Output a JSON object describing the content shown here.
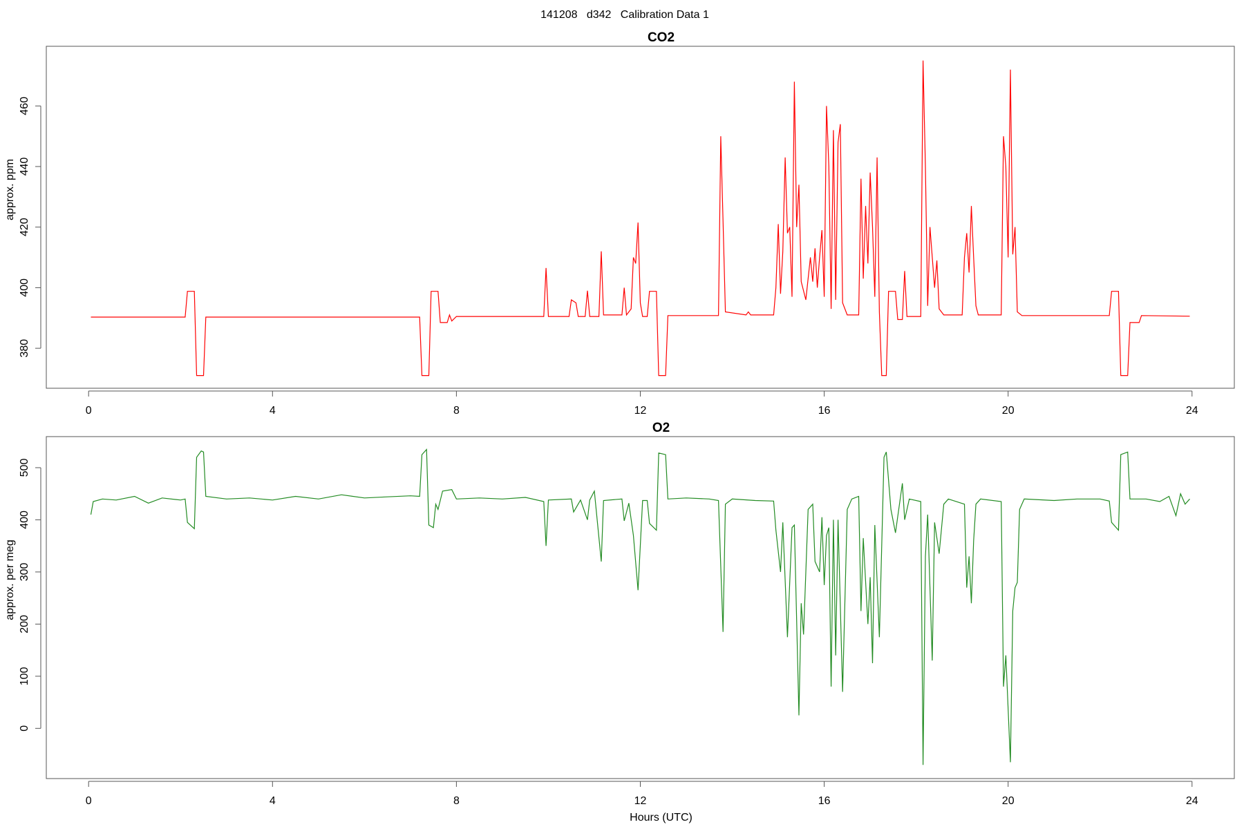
{
  "title": "141208   d342   Calibration Data 1",
  "chart_data": [
    {
      "type": "line",
      "title": "CO2",
      "ylabel": "approx. ppm",
      "color": "#ff0000",
      "xlim": [
        -0.92,
        24.92
      ],
      "xticks": [
        0,
        4,
        8,
        12,
        16,
        20,
        24
      ],
      "ylim": [
        366.8,
        479.7
      ],
      "yticks": [
        380,
        400,
        420,
        440,
        460
      ],
      "x": [
        0.05,
        2.1,
        2.15,
        2.3,
        2.35,
        2.5,
        2.55,
        7.2,
        7.25,
        7.4,
        7.45,
        7.6,
        7.65,
        7.8,
        7.85,
        7.9,
        8.0,
        9.9,
        9.95,
        10.0,
        10.45,
        10.5,
        10.6,
        10.65,
        10.8,
        10.85,
        10.9,
        11.1,
        11.15,
        11.2,
        11.6,
        11.65,
        11.7,
        11.8,
        11.85,
        11.9,
        11.95,
        12.0,
        12.05,
        12.15,
        12.2,
        12.35,
        12.4,
        12.55,
        12.6,
        13.7,
        13.75,
        13.8,
        13.85,
        14.3,
        14.35,
        14.4,
        14.9,
        14.95,
        15.0,
        15.05,
        15.1,
        15.15,
        15.2,
        15.25,
        15.3,
        15.35,
        15.4,
        15.45,
        15.5,
        15.6,
        15.7,
        15.75,
        15.8,
        15.85,
        15.9,
        15.95,
        16.0,
        16.05,
        16.1,
        16.15,
        16.2,
        16.25,
        16.3,
        16.35,
        16.4,
        16.5,
        16.75,
        16.8,
        16.85,
        16.9,
        16.95,
        17.0,
        17.05,
        17.1,
        17.15,
        17.2,
        17.25,
        17.35,
        17.4,
        17.55,
        17.6,
        17.7,
        17.75,
        17.8,
        18.1,
        18.15,
        18.2,
        18.25,
        18.3,
        18.4,
        18.45,
        18.5,
        18.6,
        19.0,
        19.05,
        19.1,
        19.15,
        19.2,
        19.25,
        19.3,
        19.35,
        19.85,
        19.9,
        19.95,
        20.0,
        20.05,
        20.1,
        20.15,
        20.2,
        20.3,
        22.2,
        22.25,
        22.4,
        22.45,
        22.6,
        22.65,
        22.85,
        22.9,
        23.95
      ],
      "values": [
        390.3,
        390.3,
        398.8,
        398.8,
        371,
        371,
        390.3,
        390.3,
        371,
        371,
        398.8,
        398.8,
        388.5,
        388.5,
        391,
        389,
        390.5,
        390.5,
        406.5,
        390.5,
        390.5,
        396,
        395,
        390.5,
        390.5,
        399,
        390.5,
        390.5,
        412,
        391,
        391,
        400,
        391,
        393,
        410,
        408,
        421.5,
        395,
        390.5,
        390.5,
        398.8,
        398.8,
        371,
        371,
        390.8,
        390.8,
        450,
        422,
        392,
        391,
        392,
        391,
        391,
        400,
        421,
        398,
        412,
        443,
        418,
        420,
        397,
        468,
        420,
        434,
        402,
        396,
        410,
        402,
        413,
        400,
        410,
        419,
        397,
        460,
        440,
        393,
        452,
        396,
        448,
        454,
        395,
        391,
        391,
        436,
        403,
        427,
        408,
        438,
        420,
        397,
        443,
        392,
        371,
        371,
        398.8,
        398.8,
        389.5,
        389.5,
        405.5,
        390.5,
        390.5,
        475,
        440,
        394,
        420,
        400,
        409,
        393,
        391,
        391,
        410,
        418,
        405,
        427,
        410,
        394,
        391,
        391,
        450,
        440,
        410,
        472,
        411,
        420,
        392,
        390.8,
        390.8,
        398.8,
        398.8,
        371,
        371,
        388.5,
        388.5,
        390.8,
        390.6
      ]
    },
    {
      "type": "line",
      "title": "O2",
      "ylabel": "approx. per meg",
      "xlabel": "Hours (UTC)",
      "color": "#228b22",
      "xlim": [
        -0.92,
        24.92
      ],
      "xticks": [
        0,
        4,
        8,
        12,
        16,
        20,
        24
      ],
      "ylim": [
        -96.3,
        559.6
      ],
      "yticks": [
        0,
        100,
        200,
        300,
        400,
        500
      ],
      "x": [
        0.05,
        0.1,
        0.3,
        0.6,
        1.0,
        1.3,
        1.6,
        2.0,
        2.1,
        2.15,
        2.3,
        2.35,
        2.45,
        2.5,
        2.55,
        3.0,
        3.5,
        4.0,
        4.5,
        5.0,
        5.5,
        6.0,
        6.5,
        7.0,
        7.2,
        7.25,
        7.35,
        7.4,
        7.5,
        7.55,
        7.6,
        7.7,
        7.9,
        8.0,
        8.5,
        9.0,
        9.5,
        9.9,
        9.95,
        10.0,
        10.5,
        10.55,
        10.7,
        10.85,
        10.9,
        11.0,
        11.15,
        11.2,
        11.6,
        11.65,
        11.75,
        11.85,
        11.95,
        12.05,
        12.15,
        12.2,
        12.35,
        12.4,
        12.55,
        12.6,
        13.0,
        13.5,
        13.7,
        13.8,
        13.85,
        14.0,
        14.5,
        14.9,
        14.95,
        15.05,
        15.1,
        15.2,
        15.3,
        15.35,
        15.45,
        15.5,
        15.55,
        15.65,
        15.75,
        15.8,
        15.9,
        15.95,
        16.0,
        16.05,
        16.1,
        16.15,
        16.2,
        16.25,
        16.3,
        16.4,
        16.5,
        16.6,
        16.75,
        16.8,
        16.85,
        16.95,
        17.0,
        17.05,
        17.1,
        17.2,
        17.3,
        17.35,
        17.45,
        17.55,
        17.7,
        17.75,
        17.85,
        18.1,
        18.15,
        18.2,
        18.25,
        18.35,
        18.4,
        18.5,
        18.6,
        18.7,
        19.05,
        19.1,
        19.15,
        19.2,
        19.25,
        19.3,
        19.4,
        19.85,
        19.9,
        19.95,
        20.05,
        20.1,
        20.15,
        20.2,
        20.25,
        20.35,
        21.0,
        21.5,
        22.0,
        22.2,
        22.25,
        22.4,
        22.45,
        22.6,
        22.65,
        23.0,
        23.3,
        23.5,
        23.65,
        23.75,
        23.85,
        23.95
      ],
      "values": [
        410,
        435,
        440,
        438,
        445,
        432,
        442,
        438,
        440,
        395,
        383,
        520,
        532,
        530,
        445,
        440,
        442,
        438,
        445,
        440,
        448,
        442,
        444,
        446,
        445,
        525,
        535,
        390,
        385,
        430,
        420,
        455,
        458,
        440,
        442,
        440,
        443,
        435,
        350,
        438,
        440,
        415,
        438,
        400,
        438,
        455,
        320,
        437,
        440,
        398,
        432,
        370,
        265,
        437,
        437,
        393,
        380,
        528,
        525,
        440,
        442,
        440,
        437,
        185,
        430,
        440,
        437,
        436,
        380,
        300,
        395,
        175,
        385,
        390,
        25,
        240,
        180,
        420,
        430,
        320,
        300,
        405,
        275,
        370,
        385,
        80,
        400,
        140,
        400,
        70,
        420,
        440,
        445,
        225,
        365,
        200,
        290,
        125,
        390,
        175,
        520,
        530,
        420,
        375,
        470,
        400,
        440,
        435,
        -70,
        330,
        410,
        130,
        395,
        335,
        430,
        440,
        430,
        270,
        330,
        240,
        360,
        430,
        440,
        435,
        80,
        140,
        -65,
        225,
        270,
        280,
        420,
        440,
        437,
        440,
        440,
        436,
        395,
        380,
        525,
        530,
        440,
        440,
        435,
        445,
        408,
        450,
        430,
        440
      ]
    }
  ]
}
